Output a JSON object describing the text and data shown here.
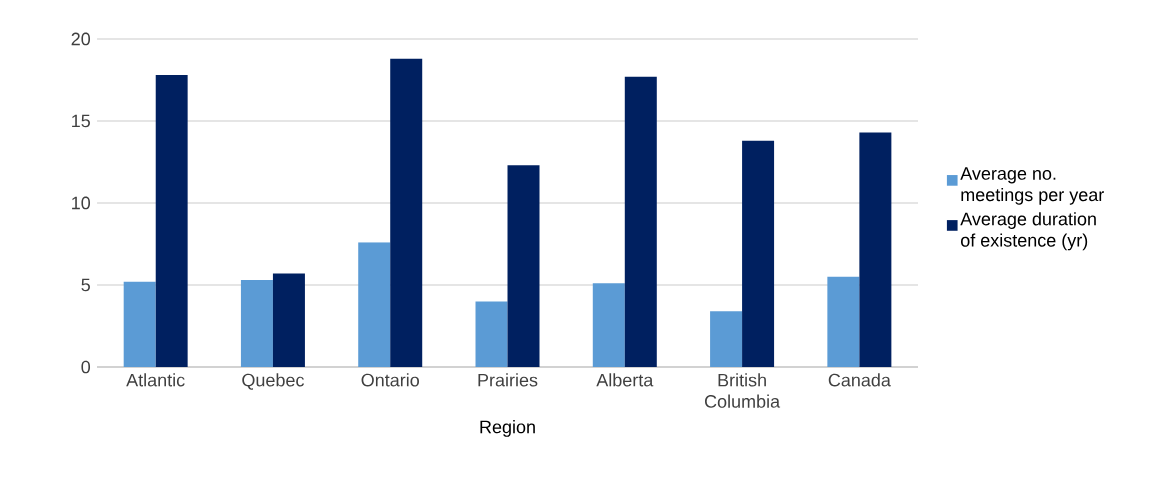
{
  "chart_data": {
    "type": "bar",
    "xlabel": "Region",
    "categories": [
      "Atlantic",
      "Quebec",
      "Ontario",
      "Prairies",
      "Alberta",
      "British Columbia",
      "Canada"
    ],
    "series": [
      {
        "name": "Average no. meetings per year",
        "color": "#5b9bd5",
        "values": [
          5.2,
          5.3,
          7.6,
          4.0,
          5.1,
          3.4,
          5.5
        ]
      },
      {
        "name": "Average duration of existence (yr)",
        "color": "#002060",
        "values": [
          17.8,
          5.7,
          18.8,
          12.3,
          17.7,
          13.8,
          14.3
        ]
      }
    ],
    "ylim": [
      0,
      20
    ],
    "yticks": [
      0,
      5,
      10,
      15,
      20
    ],
    "grid": "y",
    "legend": "right"
  }
}
